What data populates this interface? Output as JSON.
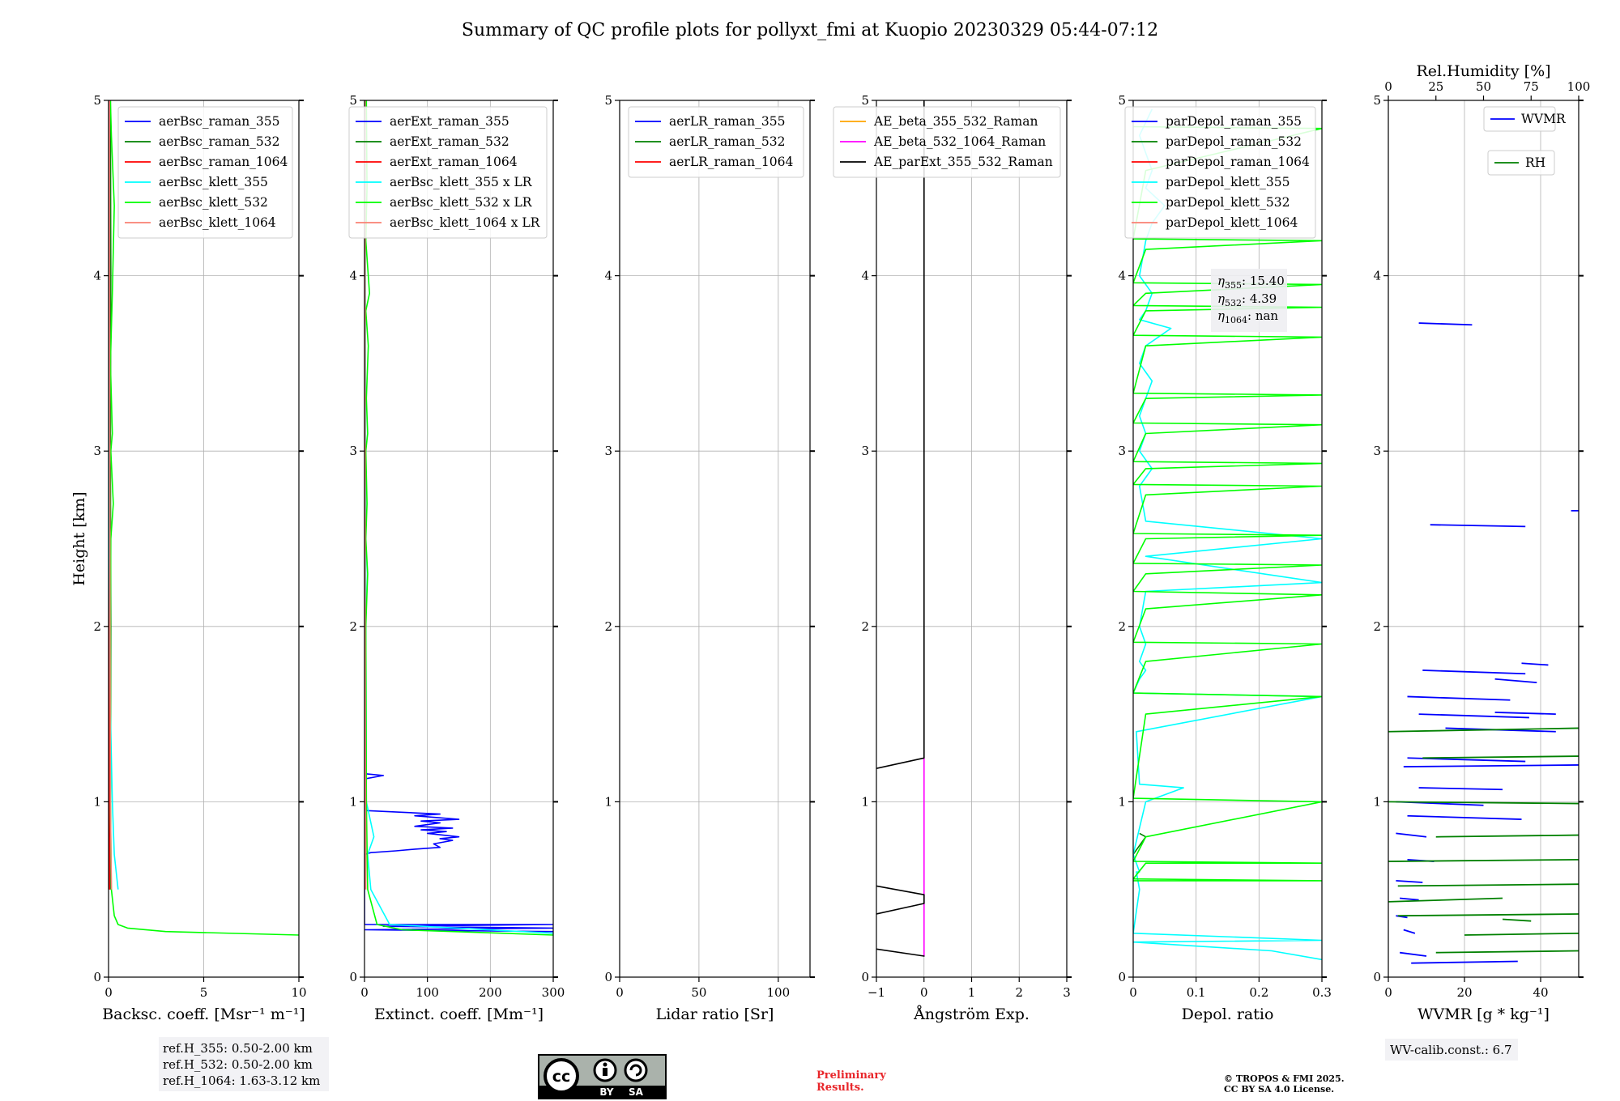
{
  "title": "Summary of QC profile plots for pollyxt_fmi at Kuopio 20230329 05:44-07:12",
  "colors": {
    "blue": "#0000ff",
    "green": "#008000",
    "red": "#ff0000",
    "cyan": "#00ffff",
    "lime": "#00ff00",
    "salmon": "#fa8072",
    "orange": "#ffa500",
    "magenta": "#ff00ff",
    "black": "#000000"
  },
  "chart_data": [
    {
      "type": "line",
      "xlabel": "Backsc. coeff. [Msr⁻¹ m⁻¹]",
      "ylabel": "Height [km]",
      "xlim": [
        0,
        10
      ],
      "ylim": [
        0,
        5
      ],
      "xticks": [
        0,
        5,
        10
      ],
      "yticks": [
        0,
        1,
        2,
        3,
        4,
        5
      ],
      "grid": true,
      "legend_position": "top-right",
      "series": [
        {
          "name": "aerBsc_raman_355",
          "color": "#0000ff",
          "x": [],
          "y": []
        },
        {
          "name": "aerBsc_raman_532",
          "color": "#008000",
          "x": [
            0.1,
            0.1,
            0.12,
            0.1,
            0.12,
            0.1
          ],
          "y": [
            0.5,
            1.0,
            2.0,
            3.0,
            4.0,
            5.0
          ]
        },
        {
          "name": "aerBsc_raman_1064",
          "color": "#ff0000",
          "x": [
            0.05,
            0.05,
            0.05,
            0.05
          ],
          "y": [
            0.5,
            2.0,
            4.0,
            5.0
          ]
        },
        {
          "name": "aerBsc_klett_355",
          "color": "#00ffff",
          "x": [
            0.5,
            0.3,
            0.2,
            0.1,
            0.05,
            0.05
          ],
          "y": [
            0.5,
            0.7,
            1.0,
            1.5,
            2.5,
            5.0
          ]
        },
        {
          "name": "aerBsc_klett_532",
          "color": "#00ff00",
          "x": [
            10.0,
            3.0,
            1.0,
            0.5,
            0.3,
            0.15,
            0.1,
            0.1,
            0.12,
            0.25,
            0.12,
            0.2,
            0.1,
            0.2,
            0.3,
            0.15,
            0.1
          ],
          "y": [
            0.24,
            0.26,
            0.28,
            0.3,
            0.35,
            0.5,
            1.0,
            2.0,
            2.5,
            2.7,
            3.0,
            3.1,
            3.5,
            3.9,
            4.4,
            4.8,
            5.0
          ]
        },
        {
          "name": "aerBsc_klett_1064",
          "color": "#fa8072",
          "x": [
            0.15,
            0.1,
            0.08,
            0.06,
            0.05
          ],
          "y": [
            0.5,
            1.0,
            2.0,
            3.5,
            5.0
          ]
        }
      ],
      "annotation": [
        "ref.H_355: 0.50-2.00 km",
        "ref.H_532: 0.50-2.00 km",
        "ref.H_1064: 1.63-3.12 km"
      ]
    },
    {
      "type": "line",
      "xlabel": "Extinct. coeff. [Mm⁻¹]",
      "xlim": [
        0,
        300
      ],
      "ylim": [
        0,
        5
      ],
      "xticks": [
        0,
        100,
        200,
        300
      ],
      "yticks": [
        0,
        1,
        2,
        3,
        4,
        5
      ],
      "grid": true,
      "legend_position": "top-right",
      "series": [
        {
          "name": "aerExt_raman_355",
          "color": "#0000ff",
          "x": [
            300,
            0,
            300,
            30,
            300,
            0,
            0,
            10,
            50,
            80,
            120,
            110,
            140,
            120,
            150,
            100,
            130,
            90,
            140,
            80,
            120,
            90,
            150,
            80,
            120,
            0,
            0,
            30,
            0
          ],
          "y": [
            0.26,
            0.27,
            0.28,
            0.29,
            0.3,
            0.3,
            0.7,
            0.71,
            0.72,
            0.73,
            0.74,
            0.76,
            0.78,
            0.79,
            0.8,
            0.82,
            0.83,
            0.84,
            0.85,
            0.86,
            0.88,
            0.89,
            0.9,
            0.92,
            0.93,
            0.95,
            1.13,
            1.15,
            1.16
          ]
        },
        {
          "name": "aerExt_raman_532",
          "color": "#008000",
          "x": [],
          "y": []
        },
        {
          "name": "aerExt_raman_1064",
          "color": "#ff0000",
          "x": [
            0,
            0,
            0
          ],
          "y": [
            0.5,
            2.0,
            4.5
          ]
        },
        {
          "name": "aerBsc_klett_355 x LR",
          "color": "#00ffff",
          "x": [
            300,
            40,
            10,
            5,
            15,
            3,
            2,
            1
          ],
          "y": [
            0.25,
            0.3,
            0.5,
            0.7,
            0.8,
            1.0,
            2.0,
            5.0
          ]
        },
        {
          "name": "aerBsc_klett_532 x LR",
          "color": "#00ff00",
          "x": [
            300,
            60,
            20,
            5,
            3,
            2,
            5,
            2,
            4,
            2,
            5,
            3,
            6,
            2,
            8,
            2,
            4,
            3
          ],
          "y": [
            0.24,
            0.27,
            0.3,
            0.5,
            1.0,
            2.0,
            2.3,
            2.5,
            2.7,
            3.0,
            3.1,
            3.3,
            3.6,
            3.8,
            3.9,
            4.2,
            4.5,
            5.0
          ]
        },
        {
          "name": "aerBsc_klett_1064 x LR",
          "color": "#fa8072",
          "x": [
            2,
            1,
            1,
            1
          ],
          "y": [
            0.5,
            2.0,
            4.0,
            5.0
          ]
        }
      ]
    },
    {
      "type": "line",
      "xlabel": "Lidar ratio [Sr]",
      "xlim": [
        0,
        120
      ],
      "ylim": [
        0,
        5
      ],
      "xticks": [
        0,
        50,
        100
      ],
      "yticks": [
        0,
        1,
        2,
        3,
        4,
        5
      ],
      "grid": true,
      "legend_position": "top-right",
      "series": [
        {
          "name": "aerLR_raman_355",
          "color": "#0000ff",
          "x": [],
          "y": []
        },
        {
          "name": "aerLR_raman_532",
          "color": "#008000",
          "x": [],
          "y": []
        },
        {
          "name": "aerLR_raman_1064",
          "color": "#ff0000",
          "x": [],
          "y": []
        }
      ]
    },
    {
      "type": "line",
      "xlabel": "Ångström Exp.",
      "xlim": [
        -1,
        3
      ],
      "ylim": [
        0,
        5
      ],
      "xticks": [
        -1,
        0,
        1,
        2,
        3
      ],
      "yticks": [
        0,
        1,
        2,
        3,
        4,
        5
      ],
      "grid": true,
      "legend_position": "top-right",
      "series": [
        {
          "name": "AE_beta_355_532_Raman",
          "color": "#ffa500",
          "x": [],
          "y": []
        },
        {
          "name": "AE_beta_532_1064_Raman",
          "color": "#ff00ff",
          "x": [
            0,
            0
          ],
          "y": [
            0.12,
            1.25
          ]
        },
        {
          "name": "AE_parExt_355_532_Raman",
          "color": "#000000",
          "x": [
            -1,
            0,
            0,
            -1,
            null,
            -1,
            0,
            0,
            -1,
            null,
            -1,
            0,
            0
          ],
          "y": [
            0.16,
            0.12,
            0.12,
            0.16,
            null,
            0.36,
            0.42,
            0.47,
            0.52,
            null,
            1.19,
            1.25,
            5.0
          ]
        }
      ]
    },
    {
      "type": "line",
      "xlabel": "Depol. ratio",
      "xlim": [
        0,
        0.3
      ],
      "ylim": [
        0,
        5
      ],
      "xticks": [
        0.0,
        0.1,
        0.2,
        0.3
      ],
      "yticks": [
        0,
        1,
        2,
        3,
        4,
        5
      ],
      "grid": true,
      "legend_position": "top-right",
      "series": [
        {
          "name": "parDepol_raman_355",
          "color": "#0000ff",
          "x": [],
          "y": []
        },
        {
          "name": "parDepol_raman_532",
          "color": "#008000",
          "x": [
            0.0,
            0.01,
            0.02,
            0.01
          ],
          "y": [
            0.7,
            0.75,
            0.8,
            0.82
          ]
        },
        {
          "name": "parDepol_raman_1064",
          "color": "#ff0000",
          "x": [],
          "y": []
        },
        {
          "name": "parDepol_klett_355",
          "color": "#00ffff",
          "x": [
            0.3,
            0.22,
            0.0,
            0.3,
            0.0,
            0.01,
            0.005,
            0.01,
            0.0,
            0.02,
            0.08,
            0.01,
            0.005,
            0.3,
            0.0,
            0.01,
            0.02,
            0.01,
            0.02,
            0.01,
            0.02,
            0.3,
            0.02,
            0.3,
            0.02,
            0.01,
            0.03,
            0.01,
            0.02,
            0.01,
            0.02,
            0.03,
            0.01,
            0.02,
            0.06,
            0.01,
            0.02,
            0.03,
            0.01,
            0.02,
            0.03,
            0.05,
            0.02,
            0.03,
            0.02,
            0.01,
            0.03
          ],
          "y": [
            0.1,
            0.15,
            0.2,
            0.21,
            0.25,
            0.5,
            0.6,
            0.6,
            0.7,
            1.0,
            1.08,
            1.1,
            1.4,
            1.6,
            1.62,
            1.7,
            1.75,
            1.8,
            1.9,
            2.0,
            2.2,
            2.25,
            2.4,
            2.5,
            2.6,
            2.8,
            2.9,
            3.0,
            3.1,
            3.2,
            3.3,
            3.4,
            3.5,
            3.6,
            3.7,
            3.75,
            3.8,
            3.9,
            4.0,
            4.2,
            4.3,
            4.4,
            4.5,
            4.6,
            4.7,
            4.8,
            4.95
          ]
        },
        {
          "name": "parDepol_klett_532",
          "color": "#00ff00",
          "x": [
            0.0,
            0.3,
            0.0,
            0.02,
            0.3,
            0.0,
            0.02,
            0.3,
            0.0,
            0.02,
            0.3,
            0.0,
            0.02,
            0.3,
            0.0,
            0.02,
            0.3,
            0.0,
            0.02,
            0.3,
            0.0,
            0.02,
            0.3,
            0.0,
            0.02,
            0.3,
            0.0,
            0.02,
            0.3,
            0.0,
            0.02,
            0.3,
            0.0,
            0.02,
            0.3,
            0.0,
            0.02,
            0.3,
            0.0,
            0.02,
            0.3,
            0.0,
            0.02,
            0.3,
            0.0,
            0.02,
            0.3,
            0.0,
            0.02,
            0.3,
            0.0
          ],
          "y": [
            0.55,
            0.55,
            0.56,
            0.65,
            0.65,
            0.66,
            0.8,
            1.0,
            1.02,
            1.5,
            1.6,
            1.62,
            1.8,
            1.9,
            1.91,
            2.1,
            2.18,
            2.2,
            2.3,
            2.35,
            2.36,
            2.5,
            2.52,
            2.53,
            2.75,
            2.8,
            2.81,
            2.9,
            2.93,
            2.94,
            3.1,
            3.15,
            3.16,
            3.3,
            3.32,
            3.33,
            3.6,
            3.65,
            3.66,
            3.8,
            3.82,
            3.83,
            3.9,
            3.95,
            3.96,
            4.15,
            4.2,
            4.21,
            4.6,
            4.84,
            4.85
          ]
        },
        {
          "name": "parDepol_klett_1064",
          "color": "#fa8072",
          "x": [],
          "y": []
        }
      ],
      "annotation": [
        "η",
        "355",
        ": 15.40",
        "532",
        ": 4.39",
        "1064",
        ": nan"
      ]
    },
    {
      "type": "line",
      "xlabel": "WVMR [g * kg⁻¹]",
      "xlim": [
        0,
        50
      ],
      "ylim": [
        0,
        5
      ],
      "xticks": [
        0,
        20,
        40
      ],
      "yticks": [
        0,
        1,
        2,
        3,
        4,
        5
      ],
      "secondary_xlabel": "Rel.Humidity [%]",
      "secondary_xlim": [
        0,
        100
      ],
      "secondary_xticks": [
        0,
        25,
        50,
        75,
        100
      ],
      "grid": true,
      "legend_position": "top-right",
      "series": [
        {
          "name": "WVMR",
          "color": "#0000ff",
          "segments": [
            [
              8,
              3.73,
              22,
              3.72
            ],
            [
              48,
              2.66,
              51,
              2.66
            ],
            [
              11,
              2.58,
              36,
              2.57
            ],
            [
              35,
              1.79,
              42,
              1.78
            ],
            [
              9,
              1.75,
              36,
              1.73
            ],
            [
              28,
              1.7,
              39,
              1.68
            ],
            [
              5,
              1.6,
              32,
              1.58
            ],
            [
              8,
              1.5,
              37,
              1.48
            ],
            [
              28,
              1.51,
              44,
              1.5
            ],
            [
              15,
              1.42,
              44,
              1.4
            ],
            [
              5,
              1.25,
              36,
              1.23
            ],
            [
              4,
              1.2,
              50,
              1.21
            ],
            [
              8,
              1.08,
              30,
              1.07
            ],
            [
              2,
              1.0,
              25,
              0.98
            ],
            [
              5,
              0.92,
              35,
              0.9
            ],
            [
              2,
              0.82,
              10,
              0.8
            ],
            [
              5,
              0.67,
              12,
              0.66
            ],
            [
              2,
              0.55,
              9,
              0.54
            ],
            [
              3,
              0.45,
              8,
              0.44
            ],
            [
              2,
              0.35,
              5,
              0.34
            ],
            [
              4,
              0.27,
              7,
              0.25
            ],
            [
              3,
              0.14,
              10,
              0.12
            ],
            [
              6,
              0.08,
              34,
              0.09
            ]
          ]
        },
        {
          "name": "RH",
          "color": "#008000",
          "segments": [
            [
              0,
              1.4,
              100,
              1.42
            ],
            [
              18,
              1.25,
              100,
              1.26
            ],
            [
              0,
              1.0,
              100,
              0.99
            ],
            [
              25,
              0.8,
              100,
              0.81
            ],
            [
              0,
              0.66,
              100,
              0.67
            ],
            [
              5,
              0.52,
              100,
              0.53
            ],
            [
              0,
              0.43,
              60,
              0.45
            ],
            [
              5,
              0.35,
              100,
              0.36
            ],
            [
              60,
              0.33,
              75,
              0.32
            ],
            [
              40,
              0.24,
              100,
              0.25
            ],
            [
              25,
              0.14,
              100,
              0.15
            ]
          ]
        }
      ],
      "annotation": [
        "WV-calib.const.: 6.7"
      ]
    }
  ],
  "footer": {
    "preliminary": [
      "Preliminary",
      "Results."
    ],
    "copyright": [
      "© TROPOS & FMI 2025.",
      "CC BY SA 4.0 License."
    ],
    "cc_badge": {
      "cc": "cc",
      "by": "BY",
      "sa": "SA"
    }
  }
}
